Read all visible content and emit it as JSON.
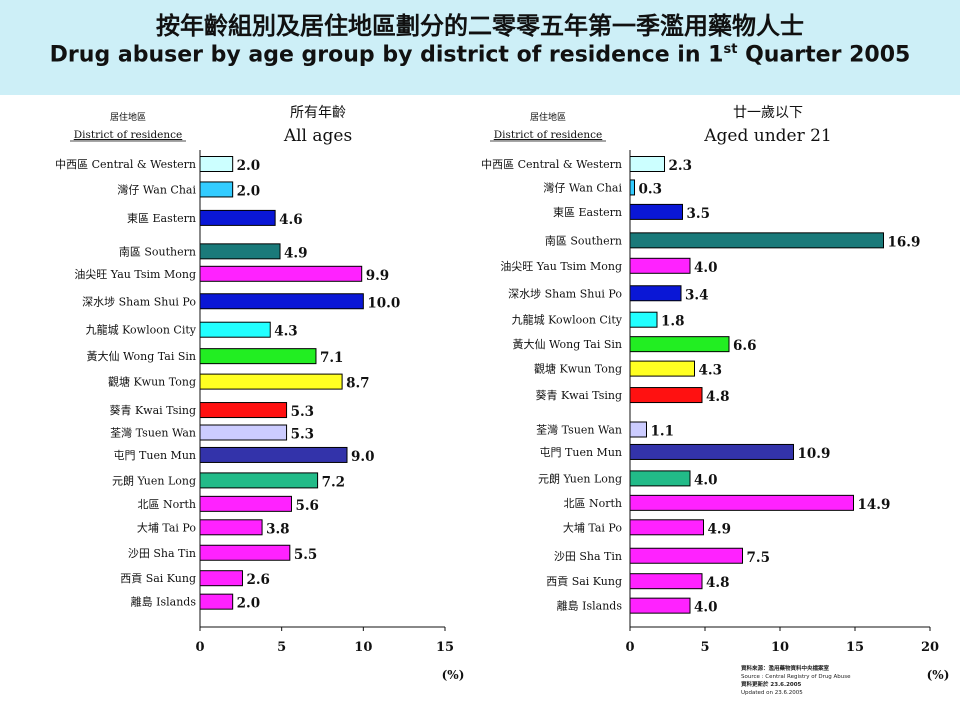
{
  "header": {
    "title_zh": "按年齡組別及居住地區劃分的二零零五年第一季濫用藥物人士",
    "title_en_main": "Drug abuser by age group by district of residence in 1",
    "title_en_sup": "st",
    "title_en_tail": " Quarter 2005"
  },
  "footer": {
    "source_zh": "資料來源：濫用藥物資料中央檔案室",
    "source_en": "Source : Central Registry of Drug Abuse",
    "updated_zh": "資料更新於 23.6.2005",
    "updated_en": "Updated on 23.6.2005"
  },
  "chart_data": [
    {
      "type": "bar",
      "orientation": "horizontal",
      "title_zh": "所有年齡",
      "title_en": "All ages",
      "category_header_zh": "居住地區",
      "category_header_en": "District of residence",
      "xlabel": "(%)",
      "xlim": [
        0,
        15
      ],
      "xticks": [
        0,
        5,
        10,
        15
      ],
      "categories": [
        "中西區 Central & Western",
        "灣仔 Wan Chai",
        "東區 Eastern",
        "南區 Southern",
        "油尖旺 Yau Tsim Mong",
        "深水埗 Sham Shui Po",
        "九龍城 Kowloon City",
        "黃大仙 Wong Tai Sin",
        "觀塘 Kwun Tong",
        "葵青 Kwai Tsing",
        "荃灣 Tsuen Wan",
        "屯門 Tuen Mun",
        "元朗 Yuen Long",
        "北區 North",
        "大埔 Tai Po",
        "沙田 Sha Tin",
        "西貢 Sai Kung",
        "離島 Islands"
      ],
      "values": [
        2.0,
        2.0,
        4.6,
        4.9,
        9.9,
        10.0,
        4.3,
        7.1,
        8.7,
        5.3,
        5.3,
        9.0,
        7.2,
        5.6,
        3.8,
        5.5,
        2.6,
        2.0
      ],
      "value_labels": [
        "2.0",
        "2.0",
        "4.6",
        "4.9",
        "9.9",
        "10.0",
        "4.3",
        "7.1",
        "8.7",
        "5.3",
        "5.3",
        "9.0",
        "7.2",
        "5.6",
        "3.8",
        "5.5",
        "2.6",
        "2.0"
      ],
      "colors": [
        "#ccffff",
        "#33ccff",
        "#0a17d6",
        "#1a7a7a",
        "#ff22ff",
        "#0a17d6",
        "#22ffff",
        "#22ee22",
        "#ffff22",
        "#ff1111",
        "#ccccff",
        "#3333aa",
        "#22bb88",
        "#ff22ff",
        "#ff22ff",
        "#ff22ff",
        "#ff22ff",
        "#ff22ff"
      ]
    },
    {
      "type": "bar",
      "orientation": "horizontal",
      "title_zh": "廿一歲以下",
      "title_en": "Aged under 21",
      "category_header_zh": "居住地區",
      "category_header_en": "District of residence",
      "xlabel": "(%)",
      "xlim": [
        0,
        20
      ],
      "xticks": [
        0,
        5,
        10,
        15,
        20
      ],
      "categories": [
        "中西區 Central & Western",
        "灣仔 Wan Chai",
        "東區 Eastern",
        "南區 Southern",
        "油尖旺 Yau Tsim Mong",
        "深水埗 Sham Shui Po",
        "九龍城 Kowloon City",
        "黃大仙 Wong Tai Sin",
        "觀塘 Kwun Tong",
        "葵青 Kwai Tsing",
        "荃灣 Tsuen Wan",
        "屯門 Tuen Mun",
        "元朗 Yuen Long",
        "北區 North",
        "大埔 Tai Po",
        "沙田 Sha Tin",
        "西貢 Sai Kung",
        "離島 Islands"
      ],
      "values": [
        2.3,
        0.3,
        3.5,
        16.9,
        4.0,
        3.4,
        1.8,
        6.6,
        4.3,
        4.8,
        1.1,
        10.9,
        4.0,
        14.9,
        4.9,
        7.5,
        4.8,
        4.0
      ],
      "value_labels": [
        "2.3",
        "0.3",
        "3.5",
        "16.9",
        "4.0",
        "3.4",
        "1.8",
        "6.6",
        "4.3",
        "4.8",
        "1.1",
        "10.9",
        "4.0",
        "14.9",
        "4.9",
        "7.5",
        "4.8",
        "4.0"
      ],
      "colors": [
        "#ccffff",
        "#33ccff",
        "#0a17d6",
        "#1a7a7a",
        "#ff22ff",
        "#0a17d6",
        "#22ffff",
        "#22ee22",
        "#ffff22",
        "#ff1111",
        "#ccccff",
        "#3333aa",
        "#22bb88",
        "#ff22ff",
        "#ff22ff",
        "#ff22ff",
        "#ff22ff",
        "#ff22ff"
      ]
    }
  ]
}
